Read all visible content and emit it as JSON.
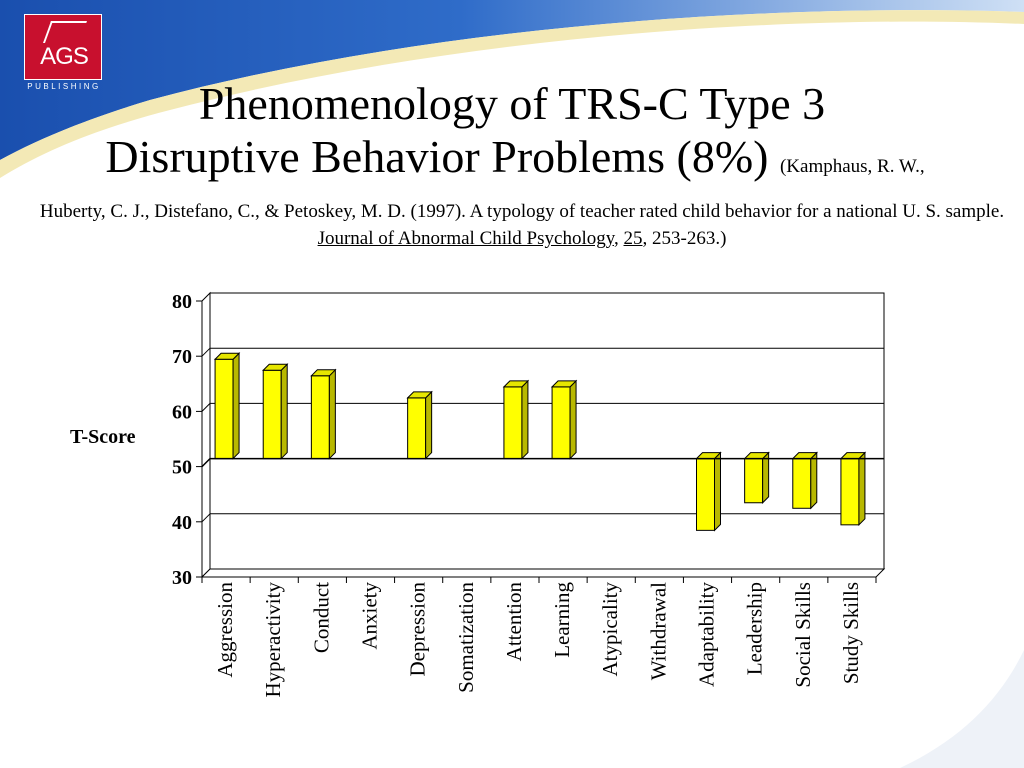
{
  "header": {
    "logo_text": "AGS",
    "logo_sub": "PUBLISHING",
    "title_line1": "Phenomenology of TRS-C Type 3",
    "title_line2": "Disruptive Behavior Problems (8%)",
    "citation_open": "(Kamphaus, R. W.,",
    "citation_body": "Huberty, C. J., Distefano, C., & Petoskey, M. D. (1997).  A typology of teacher rated child behavior for a national U. S. sample.",
    "citation_journal": "Journal of Abnormal Child Psychology",
    "citation_sep": ",",
    "citation_volume": "25",
    "citation_pages": ", 253-263.)"
  },
  "colors": {
    "bar": "#ffff00",
    "bar_side": "#b8b800",
    "bar_top": "#e6e600",
    "grid": "#000000",
    "banner_blue": "#1f56b8",
    "banner_light": "#d4e3f6",
    "banner_cream": "#f3e9b6",
    "logo_red": "#c8102e"
  },
  "chart_data": {
    "type": "bar",
    "title": "",
    "ylabel": "T-Score",
    "xlabel": "",
    "baseline": 50,
    "ylim": [
      30,
      80
    ],
    "yticks": [
      30,
      40,
      50,
      60,
      70,
      80
    ],
    "grid": true,
    "categories": [
      "Aggression",
      "Hyperactivity",
      "Conduct",
      "Anxiety",
      "Depression",
      "Somatization",
      "Attention",
      "Learning",
      "Atypicality",
      "Withdrawal",
      "Adaptability",
      "Leadership",
      "Social Skills",
      "Study Skills"
    ],
    "values": [
      68,
      66,
      65,
      50,
      61,
      50,
      63,
      63,
      50,
      50,
      37,
      42,
      41,
      38
    ]
  }
}
